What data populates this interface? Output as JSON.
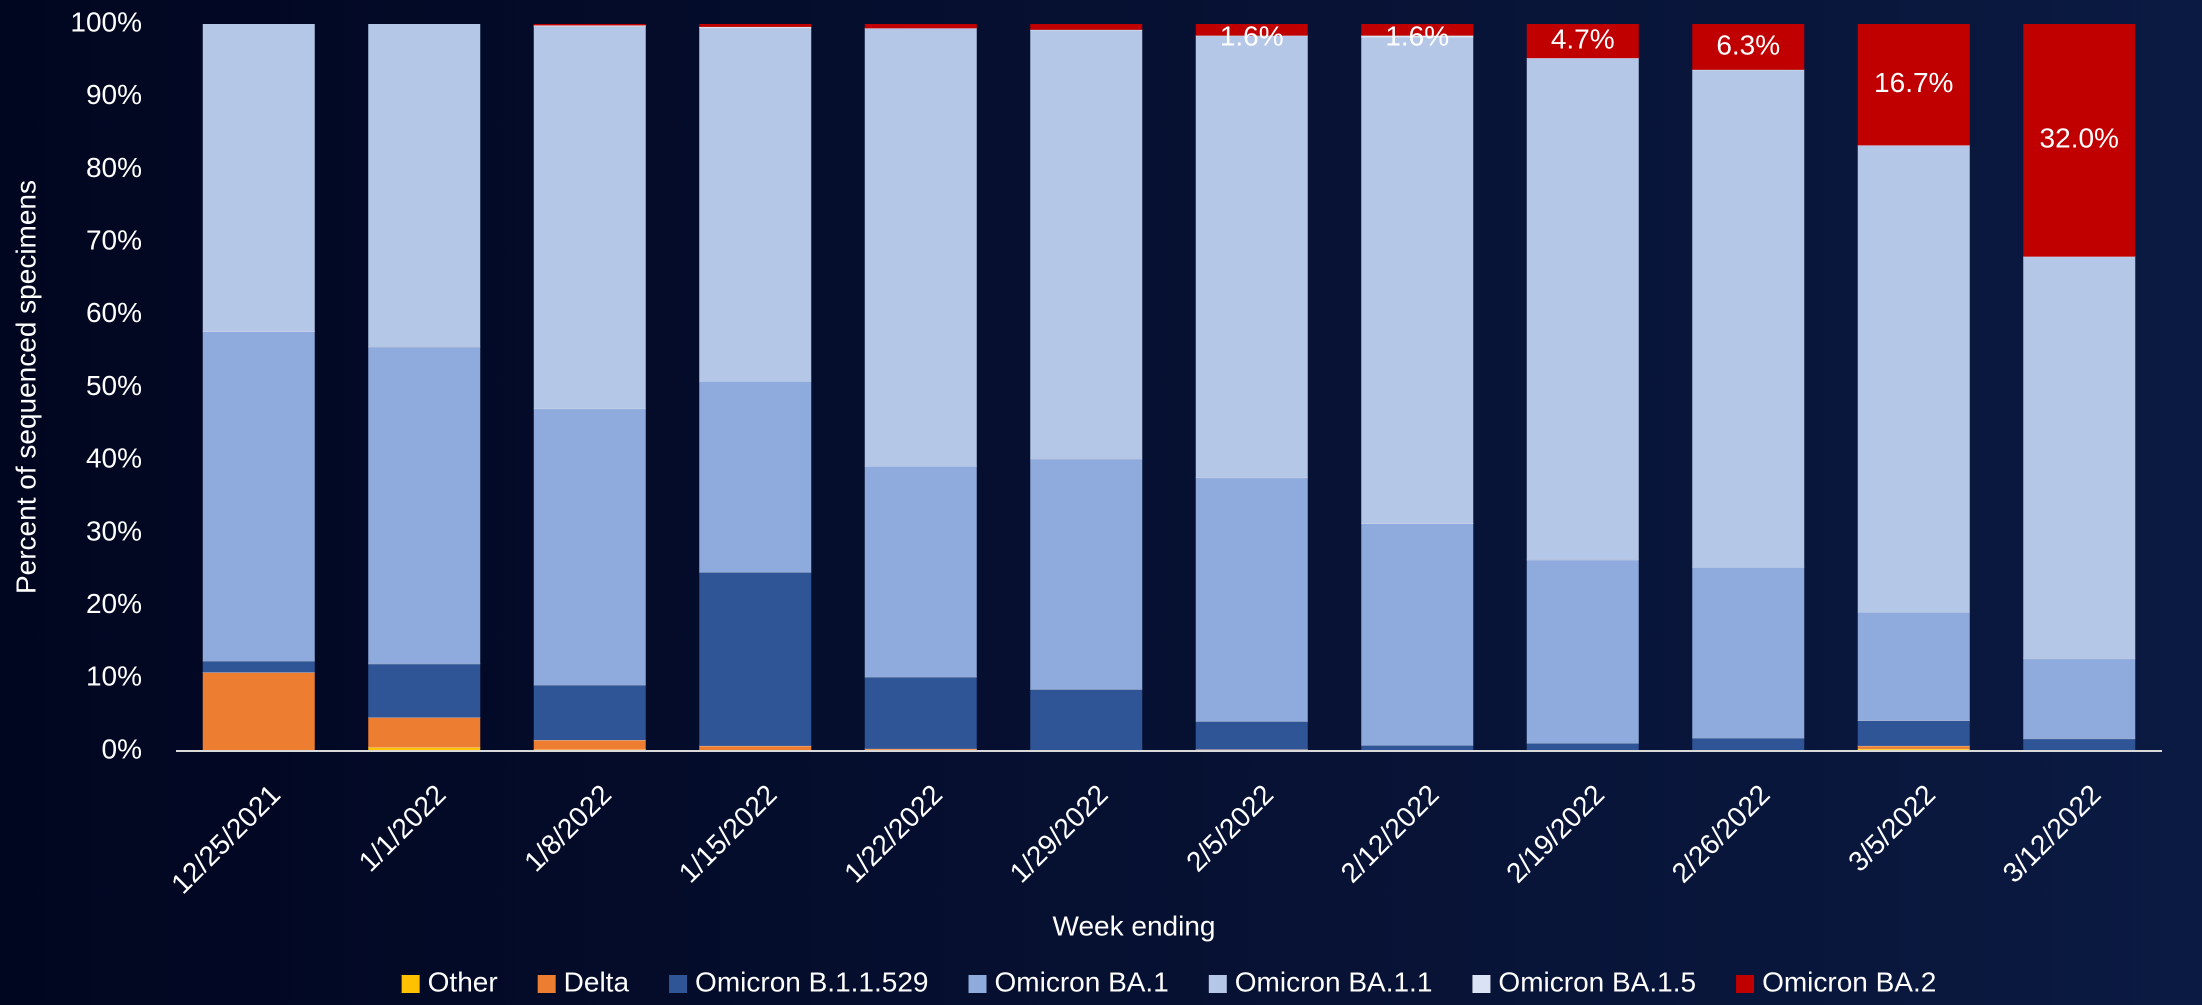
{
  "chart_data": {
    "type": "stacked_bar",
    "y_label": "Percent of sequenced specimens",
    "x_label": "Week ending",
    "categories": [
      "12/25/2021",
      "1/1/2022",
      "1/8/2022",
      "1/15/2022",
      "1/22/2022",
      "1/29/2022",
      "2/5/2022",
      "2/12/2022",
      "2/19/2022",
      "2/26/2022",
      "3/5/2022",
      "3/12/2022"
    ],
    "series": [
      {
        "name": "Other",
        "color": "#ffc000",
        "values": [
          0,
          0.5,
          0.2,
          0.1,
          0.1,
          0,
          0.1,
          0,
          0,
          0,
          0.3,
          0
        ]
      },
      {
        "name": "Delta",
        "color": "#ed7d31",
        "values": [
          10.8,
          4.1,
          1.3,
          0.6,
          0.2,
          0.1,
          0.1,
          0,
          0,
          0,
          0.4,
          0
        ]
      },
      {
        "name": "Omicron B.1.1.529",
        "color": "#2f5597",
        "values": [
          1.6,
          7.4,
          7.6,
          23.9,
          9.9,
          8.4,
          3.9,
          0.8,
          1.1,
          1.8,
          3.5,
          1.7
        ]
      },
      {
        "name": "Omicron BA.1",
        "color": "#8faadc",
        "values": [
          45.3,
          43.6,
          38.0,
          26.3,
          29.0,
          31.7,
          33.5,
          30.5,
          25.2,
          23.5,
          14.9,
          11.0
        ]
      },
      {
        "name": "Omicron BA.1.1",
        "color": "#b4c7e7",
        "values": [
          42.3,
          44.4,
          52.6,
          48.6,
          60.2,
          59.0,
          60.8,
          66.9,
          69.0,
          68.4,
          64.2,
          55.3
        ]
      },
      {
        "name": "Omicron BA.1.5",
        "color": "#dae3f3",
        "values": [
          0,
          0,
          0.1,
          0.1,
          0,
          0,
          0,
          0.2,
          0,
          0,
          0,
          0
        ]
      },
      {
        "name": "Omicron BA.2",
        "color": "#c00000",
        "values": [
          0,
          0,
          0.2,
          0.4,
          0.6,
          0.8,
          1.6,
          1.6,
          4.7,
          6.3,
          16.7,
          32.0
        ],
        "value_labels": [
          null,
          null,
          null,
          null,
          null,
          null,
          "1.6%",
          "1.6%",
          "4.7%",
          "6.3%",
          "16.7%",
          "32.0%"
        ]
      }
    ],
    "ylim": [
      0,
      100
    ],
    "yticks": [
      {
        "value": 0,
        "label": "0%"
      },
      {
        "value": 10,
        "label": "10%"
      },
      {
        "value": 20,
        "label": "20%"
      },
      {
        "value": 30,
        "label": "30%"
      },
      {
        "value": 40,
        "label": "40%"
      },
      {
        "value": 50,
        "label": "50%"
      },
      {
        "value": 60,
        "label": "60%"
      },
      {
        "value": 70,
        "label": "70%"
      },
      {
        "value": 80,
        "label": "80%"
      },
      {
        "value": 90,
        "label": "90%"
      },
      {
        "value": 100,
        "label": "100%"
      }
    ],
    "grid": false,
    "legend": "bottom"
  }
}
